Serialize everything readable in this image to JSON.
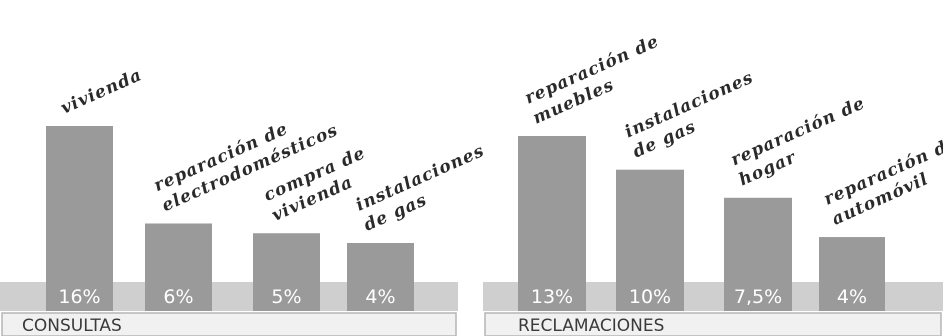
{
  "chart_data": [
    {
      "type": "bar",
      "title": "CONSULTAS",
      "categories": [
        "vivienda",
        "reparación de electrodomésticos",
        "compra de vivienda",
        "instalaciones de gas"
      ],
      "category_lines": [
        [
          "vivienda"
        ],
        [
          "reparación de",
          "electrodomésticos"
        ],
        [
          "compra de",
          "vivienda"
        ],
        [
          "instalaciones",
          "de gas"
        ]
      ],
      "values": [
        16,
        6,
        5,
        4
      ],
      "value_labels": [
        "16%",
        "6%",
        "5%",
        "4%"
      ],
      "ylim": [
        0,
        16
      ],
      "grid": false,
      "colors": {
        "bar": "#9a9a9a",
        "base": "#cfcfcf"
      }
    },
    {
      "type": "bar",
      "title": "RECLAMACIONES",
      "categories": [
        "reparación de muebles",
        "instalaciones de gas",
        "reparación de hogar",
        "reparación de automóvil"
      ],
      "category_lines": [
        [
          "reparación de",
          "muebles"
        ],
        [
          "instalaciones",
          "de gas"
        ],
        [
          "reparación de",
          "hogar"
        ],
        [
          "reparación de",
          "automóvil"
        ]
      ],
      "values": [
        13,
        10,
        7.5,
        4
      ],
      "value_labels": [
        "13%",
        "10%",
        "7,5%",
        "4%"
      ],
      "ylim": [
        0,
        13
      ],
      "grid": false,
      "colors": {
        "bar": "#9a9a9a",
        "base": "#cfcfcf"
      }
    }
  ]
}
